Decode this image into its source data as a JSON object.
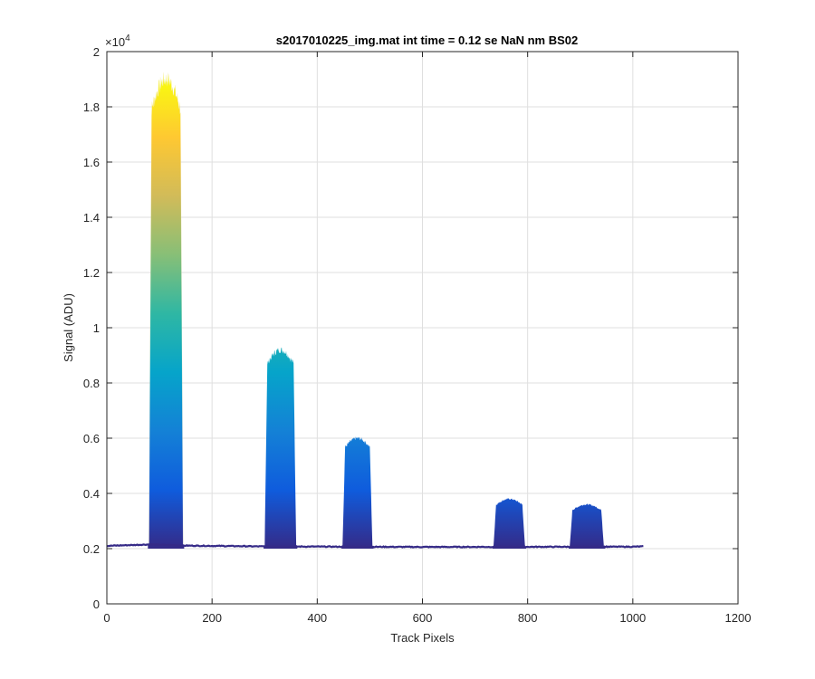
{
  "chart_data": {
    "type": "area",
    "title": "s2017010225_img.mat int time = 0.12 se  NaN nm BS02",
    "xlabel": "Track Pixels",
    "ylabel": "Signal (ADU)",
    "xlim": [
      0,
      1200
    ],
    "ylim": [
      0,
      20000
    ],
    "xticks": [
      0,
      200,
      400,
      600,
      800,
      1000,
      1200
    ],
    "yticks": [
      0,
      2000,
      4000,
      6000,
      8000,
      10000,
      12000,
      14000,
      16000,
      18000,
      20000
    ],
    "ytick_labels": [
      "0",
      "0.2",
      "0.4",
      "0.6",
      "0.8",
      "1",
      "1.2",
      "1.4",
      "1.6",
      "1.8",
      "2"
    ],
    "y_exponent_label": "×10",
    "y_exponent_power": "4",
    "grid": true,
    "colormap": "parula",
    "colormap_stops": [
      "#352a87",
      "#0f5cdd",
      "#1481d6",
      "#06a4ca",
      "#2eb7a4",
      "#87bf77",
      "#d1bb59",
      "#fec832",
      "#f9fb0e"
    ],
    "baseline": [
      [
        0,
        2100
      ],
      [
        80,
        2150
      ],
      [
        145,
        2110
      ],
      [
        300,
        2080
      ],
      [
        600,
        2060
      ],
      [
        1000,
        2070
      ],
      [
        1020,
        2080
      ]
    ],
    "peaks": [
      {
        "x_start": 80,
        "x_end": 145,
        "peak": 19000
      },
      {
        "x_start": 300,
        "x_end": 360,
        "peak": 9200
      },
      {
        "x_start": 448,
        "x_end": 505,
        "peak": 6000
      },
      {
        "x_start": 735,
        "x_end": 795,
        "peak": 3800
      },
      {
        "x_start": 880,
        "x_end": 945,
        "peak": 3600
      }
    ]
  }
}
